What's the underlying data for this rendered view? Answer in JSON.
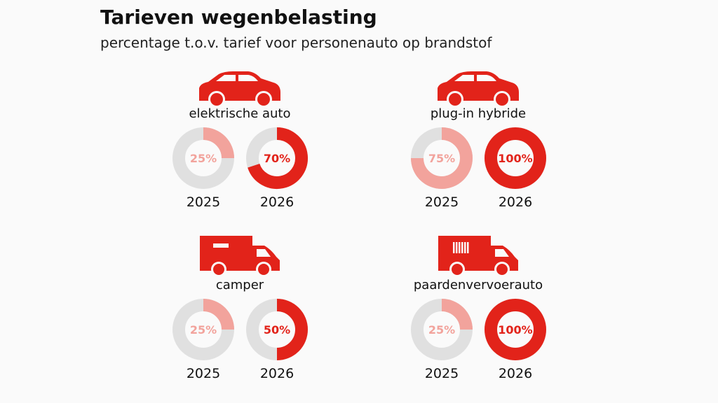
{
  "title": "Tarieven wegenbelasting",
  "subtitle": "percentage t.o.v. tarief voor personenauto op brandstof",
  "colors": {
    "accent": "#e2231a",
    "previous": "#f2a39c",
    "track": "#e0e0e0"
  },
  "chart_data": {
    "type": "donut",
    "unit": "%",
    "groups": [
      {
        "label": "elektrische auto",
        "icon": "car-icon",
        "values": [
          {
            "year": "2025",
            "value": 25,
            "label": "25%"
          },
          {
            "year": "2026",
            "value": 70,
            "label": "70%"
          }
        ]
      },
      {
        "label": "plug-in hybride",
        "icon": "car-icon",
        "values": [
          {
            "year": "2025",
            "value": 75,
            "label": "75%"
          },
          {
            "year": "2026",
            "value": 100,
            "label": "100%"
          }
        ]
      },
      {
        "label": "camper",
        "icon": "camper-icon",
        "values": [
          {
            "year": "2025",
            "value": 25,
            "label": "25%"
          },
          {
            "year": "2026",
            "value": 50,
            "label": "50%"
          }
        ]
      },
      {
        "label": "paardenvervoerauto",
        "icon": "horse-trailer-icon",
        "values": [
          {
            "year": "2025",
            "value": 25,
            "label": "25%"
          },
          {
            "year": "2026",
            "value": 100,
            "label": "100%"
          }
        ]
      }
    ]
  }
}
